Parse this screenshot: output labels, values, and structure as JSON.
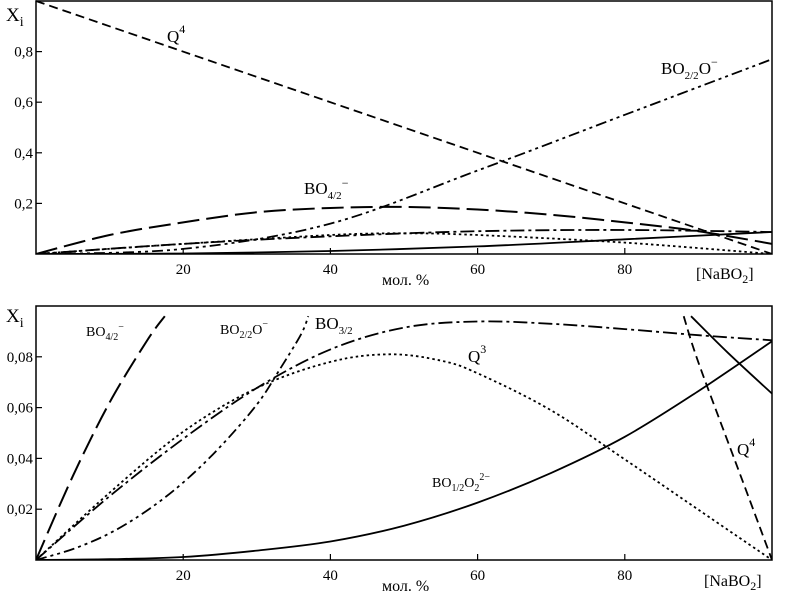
{
  "chart_data": [
    {
      "type": "line",
      "ylabel": "X",
      "ylabel_sub": "i",
      "xlabel": "мол. %",
      "xunit": "[NaBO",
      "xunit_sub": "2",
      "xunit_end": "]",
      "xlim": [
        0,
        100
      ],
      "ylim": [
        0,
        1.0
      ],
      "x_ticks": [
        "20",
        "40",
        "60",
        "80"
      ],
      "y_ticks": [
        "0,2",
        "0,4",
        "0,6",
        "0,8"
      ],
      "series": [
        {
          "name": "Q4",
          "style": "dashed",
          "x": [
            0,
            100
          ],
          "y": [
            1.0,
            0.0
          ]
        },
        {
          "name": "BO2/2O−",
          "style": "dashdotdot",
          "x": [
            0,
            20,
            40,
            60,
            80,
            100
          ],
          "y": [
            0.0,
            0.02,
            0.12,
            0.33,
            0.55,
            0.77
          ]
        },
        {
          "name": "BO4/2−",
          "style": "longdash",
          "x": [
            0,
            10,
            20,
            30,
            40,
            50,
            60,
            70,
            80,
            90,
            100
          ],
          "y": [
            0.0,
            0.075,
            0.125,
            0.165,
            0.182,
            0.186,
            0.176,
            0.155,
            0.125,
            0.09,
            0.04
          ]
        },
        {
          "name": "BO3/2",
          "style": "dashdot",
          "x": [
            0,
            20,
            40,
            60,
            80,
            100
          ],
          "y": [
            0.0,
            0.04,
            0.07,
            0.09,
            0.095,
            0.087
          ]
        },
        {
          "name": "Q3",
          "style": "dotted",
          "x": [
            0,
            20,
            40,
            50,
            60,
            80,
            100
          ],
          "y": [
            0.0,
            0.04,
            0.075,
            0.082,
            0.075,
            0.045,
            0.0
          ]
        },
        {
          "name": "BO1/2O2 2−",
          "style": "solid",
          "x": [
            0,
            20,
            40,
            60,
            80,
            100
          ],
          "y": [
            0.0,
            0.002,
            0.012,
            0.03,
            0.058,
            0.087
          ]
        }
      ],
      "labels": {
        "q4": "Q",
        "q4_sup": "4",
        "bo22": "BO",
        "bo22_sub": "2/2",
        "bo22_end": "O",
        "bo22_sup": "−",
        "bo42": "BO",
        "bo42_sub": "4/2",
        "bo42_sup": "−"
      }
    },
    {
      "type": "line",
      "ylabel": "X",
      "ylabel_sub": "i",
      "xlabel": "мол. %",
      "xunit": "[NaBO",
      "xunit_sub": "2",
      "xunit_end": "]",
      "xlim": [
        0,
        100
      ],
      "ylim": [
        0,
        0.1
      ],
      "x_ticks": [
        "20",
        "40",
        "60",
        "80"
      ],
      "y_ticks": [
        "0,02",
        "0,04",
        "0,06",
        "0,08"
      ],
      "series": [
        {
          "name": "BO4/2−",
          "style": "longdash",
          "x": [
            0,
            5,
            10,
            15,
            17.5
          ],
          "y": [
            0.0,
            0.033,
            0.062,
            0.086,
            0.096
          ]
        },
        {
          "name": "BO2/2O−",
          "style": "dashdotdot",
          "x": [
            0,
            5,
            10,
            15,
            20,
            25,
            30,
            33,
            36,
            37
          ],
          "y": [
            0.0,
            0.0043,
            0.0105,
            0.0193,
            0.0305,
            0.0445,
            0.0612,
            0.0745,
            0.0888,
            0.096
          ]
        },
        {
          "name": "BO3/2",
          "style": "dashdot",
          "x": [
            0,
            10,
            20,
            30,
            40,
            50,
            60,
            70,
            80,
            90,
            100
          ],
          "y": [
            0.0,
            0.0251,
            0.0477,
            0.0677,
            0.0829,
            0.0915,
            0.0939,
            0.093,
            0.0909,
            0.0885,
            0.0865
          ]
        },
        {
          "name": "Q3",
          "style": "dotted",
          "x": [
            0,
            10,
            20,
            30,
            40,
            48,
            55,
            60,
            70,
            80,
            90,
            100
          ],
          "y": [
            0.0,
            0.0265,
            0.0505,
            0.0677,
            0.078,
            0.081,
            0.0785,
            0.0735,
            0.0589,
            0.0396,
            0.0198,
            0.0
          ]
        },
        {
          "name": "Q4",
          "style": "dashed",
          "x": [
            88,
            90,
            95,
            100
          ],
          "y": [
            0.096,
            0.0778,
            0.0389,
            0.0
          ]
        },
        {
          "name": "BO1/2O2 2−",
          "style": "solid",
          "x": [
            0,
            10,
            20,
            30,
            40,
            50,
            60,
            70,
            80,
            90,
            100
          ],
          "y": [
            0.0,
            0.0003,
            0.0012,
            0.0037,
            0.0073,
            0.0135,
            0.0226,
            0.0343,
            0.0485,
            0.0665,
            0.0861
          ]
        },
        {
          "name": "",
          "style": "solid",
          "x": [
            89,
            94,
            100
          ],
          "y": [
            0.096,
            0.0816,
            0.0655
          ]
        }
      ],
      "labels": {
        "q3": "Q",
        "q3_sup": "3",
        "q4": "Q",
        "q4_sup": "4",
        "bo42": "BO",
        "bo42_sub": "4/2",
        "bo42_sup": "−",
        "bo22": "BO",
        "bo22_sub": "2/2",
        "bo22_end": "O",
        "bo22_sup": "−",
        "bo32": "BO",
        "bo32_sub": "3/2",
        "bo12": "BO",
        "bo12_sub": "1/2",
        "bo12_mid": "O",
        "bo12_sub2": "2",
        "bo12_sup": "2−"
      }
    }
  ]
}
